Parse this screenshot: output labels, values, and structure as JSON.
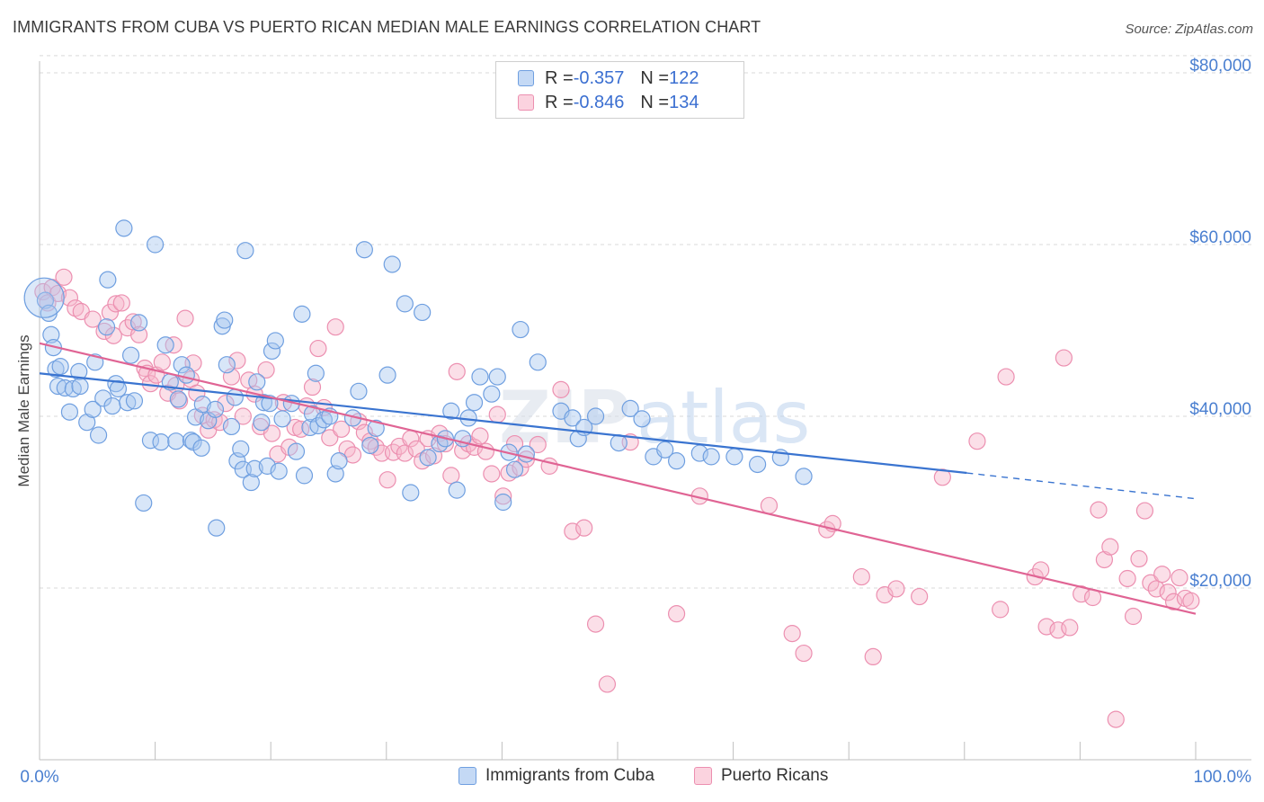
{
  "title": "IMMIGRANTS FROM CUBA VS PUERTO RICAN MEDIAN MALE EARNINGS CORRELATION CHART",
  "source": "Source: ZipAtlas.com",
  "watermark": {
    "part1": "ZIP",
    "part2": "atlas"
  },
  "legend": {
    "cuba": {
      "r_label": "R = ",
      "r_value": "-0.357",
      "n_label": "N = ",
      "n_value": "122"
    },
    "pr": {
      "r_label": "R = ",
      "r_value": "-0.846",
      "n_label": "N = ",
      "n_value": "134"
    }
  },
  "colors": {
    "cuba_fill": "#a8c8f0",
    "cuba_stroke": "#6f9fe0",
    "cuba_line": "#3a74d0",
    "pr_fill": "#f7b8cc",
    "pr_stroke": "#ec8fb0",
    "pr_line": "#e06494",
    "grid": "#d9d9d9",
    "tick_text": "#4a7fd0"
  },
  "chart_data": {
    "type": "scatter",
    "title": "IMMIGRANTS FROM CUBA VS PUERTO RICAN MEDIAN MALE EARNINGS CORRELATION CHART",
    "xlabel": "",
    "ylabel": "Median Male Earnings",
    "xlim": [
      0,
      100
    ],
    "ylim": [
      0,
      82000
    ],
    "x_tick_labels": [
      "0.0%",
      "100.0%"
    ],
    "y_ticks": [
      {
        "value": 20000,
        "label": "$20,000"
      },
      {
        "value": 40000,
        "label": "$40,000"
      },
      {
        "value": 60000,
        "label": "$60,000"
      },
      {
        "value": 80000,
        "label": "$80,000"
      }
    ],
    "grid": true,
    "legend_position": "top-center",
    "series": [
      {
        "name": "Immigrants from Cuba",
        "trend": {
          "x": [
            0,
            80.2
          ],
          "y": [
            45000,
            33400
          ],
          "dashed_to": [
            100,
            30400
          ]
        },
        "points": [
          [
            0.5,
            53500
          ],
          [
            0.8,
            52000
          ],
          [
            1.0,
            49500
          ],
          [
            1.2,
            48000
          ],
          [
            1.4,
            45500
          ],
          [
            1.6,
            43500
          ],
          [
            1.8,
            45800
          ],
          [
            2.2,
            43300
          ],
          [
            2.6,
            40500
          ],
          [
            2.9,
            43200
          ],
          [
            3.4,
            45200
          ],
          [
            3.5,
            43500
          ],
          [
            4.1,
            39300
          ],
          [
            4.6,
            40800
          ],
          [
            4.8,
            46300
          ],
          [
            5.1,
            37800
          ],
          [
            5.5,
            42100
          ],
          [
            5.8,
            50400
          ],
          [
            5.9,
            55900
          ],
          [
            6.3,
            41200
          ],
          [
            6.6,
            43800
          ],
          [
            6.8,
            43200
          ],
          [
            7.3,
            61900
          ],
          [
            7.6,
            41600
          ],
          [
            7.9,
            47100
          ],
          [
            8.2,
            41800
          ],
          [
            8.6,
            50900
          ],
          [
            9.0,
            29900
          ],
          [
            9.6,
            37200
          ],
          [
            10.0,
            60000
          ],
          [
            10.5,
            37000
          ],
          [
            10.9,
            48300
          ],
          [
            11.3,
            44000
          ],
          [
            11.8,
            37100
          ],
          [
            12.0,
            42000
          ],
          [
            12.3,
            46000
          ],
          [
            12.7,
            44800
          ],
          [
            13.1,
            37200
          ],
          [
            13.3,
            37000
          ],
          [
            13.5,
            39900
          ],
          [
            14.0,
            36300
          ],
          [
            14.1,
            41400
          ],
          [
            14.6,
            39500
          ],
          [
            15.2,
            40800
          ],
          [
            15.3,
            27000
          ],
          [
            15.8,
            50500
          ],
          [
            16.0,
            51200
          ],
          [
            16.2,
            46000
          ],
          [
            16.6,
            38800
          ],
          [
            16.9,
            42200
          ],
          [
            17.1,
            34800
          ],
          [
            17.4,
            36200
          ],
          [
            17.6,
            33800
          ],
          [
            17.8,
            59300
          ],
          [
            18.3,
            32300
          ],
          [
            18.6,
            33900
          ],
          [
            18.8,
            44000
          ],
          [
            19.2,
            39300
          ],
          [
            19.4,
            41600
          ],
          [
            19.7,
            34200
          ],
          [
            19.9,
            41500
          ],
          [
            20.1,
            47600
          ],
          [
            20.4,
            48800
          ],
          [
            20.7,
            33600
          ],
          [
            21.0,
            39700
          ],
          [
            21.8,
            41500
          ],
          [
            22.2,
            35900
          ],
          [
            22.7,
            51900
          ],
          [
            22.9,
            33100
          ],
          [
            23.4,
            38700
          ],
          [
            23.6,
            40300
          ],
          [
            23.9,
            45000
          ],
          [
            24.1,
            38900
          ],
          [
            24.6,
            39600
          ],
          [
            25.1,
            40000
          ],
          [
            25.6,
            33300
          ],
          [
            25.9,
            34800
          ],
          [
            27.1,
            39800
          ],
          [
            27.6,
            42900
          ],
          [
            28.1,
            59400
          ],
          [
            28.6,
            36600
          ],
          [
            29.1,
            38600
          ],
          [
            30.1,
            44800
          ],
          [
            30.5,
            57700
          ],
          [
            31.6,
            53100
          ],
          [
            32.1,
            31100
          ],
          [
            33.1,
            52100
          ],
          [
            33.6,
            35200
          ],
          [
            34.6,
            36800
          ],
          [
            35.1,
            37400
          ],
          [
            35.6,
            40600
          ],
          [
            36.1,
            31400
          ],
          [
            36.6,
            37400
          ],
          [
            37.1,
            39800
          ],
          [
            37.6,
            41600
          ],
          [
            38.1,
            44600
          ],
          [
            39.1,
            42600
          ],
          [
            39.6,
            44600
          ],
          [
            40.1,
            30000
          ],
          [
            40.6,
            35800
          ],
          [
            41.1,
            33800
          ],
          [
            41.6,
            50100
          ],
          [
            42.1,
            35600
          ],
          [
            43.1,
            46300
          ],
          [
            45.1,
            40600
          ],
          [
            46.1,
            39800
          ],
          [
            46.6,
            37400
          ],
          [
            47.1,
            38700
          ],
          [
            48.1,
            40000
          ],
          [
            50.1,
            36900
          ],
          [
            51.1,
            40900
          ],
          [
            52.1,
            39700
          ],
          [
            53.1,
            35300
          ],
          [
            54.1,
            36100
          ],
          [
            55.1,
            34800
          ],
          [
            57.1,
            35700
          ],
          [
            58.1,
            35300
          ],
          [
            60.1,
            35300
          ],
          [
            62.1,
            34400
          ],
          [
            64.1,
            35200
          ],
          [
            66.1,
            33000
          ]
        ]
      },
      {
        "name": "Puerto Ricans",
        "trend": {
          "x": [
            0,
            100
          ],
          "y": [
            48500,
            17000
          ]
        },
        "points": [
          [
            0.3,
            54500
          ],
          [
            0.7,
            53200
          ],
          [
            1.1,
            55000
          ],
          [
            1.6,
            54300
          ],
          [
            2.1,
            56200
          ],
          [
            2.6,
            53800
          ],
          [
            3.1,
            52600
          ],
          [
            3.6,
            52200
          ],
          [
            4.6,
            51300
          ],
          [
            5.6,
            49900
          ],
          [
            6.1,
            52100
          ],
          [
            6.4,
            49400
          ],
          [
            6.6,
            53100
          ],
          [
            7.1,
            53200
          ],
          [
            7.6,
            50300
          ],
          [
            8.1,
            51000
          ],
          [
            8.6,
            49500
          ],
          [
            9.1,
            45600
          ],
          [
            9.3,
            45000
          ],
          [
            9.6,
            43800
          ],
          [
            10.1,
            44800
          ],
          [
            10.6,
            46300
          ],
          [
            11.1,
            42700
          ],
          [
            11.6,
            48300
          ],
          [
            11.8,
            43600
          ],
          [
            12.1,
            41800
          ],
          [
            12.6,
            51400
          ],
          [
            13.1,
            44300
          ],
          [
            13.3,
            46200
          ],
          [
            13.6,
            42700
          ],
          [
            14.1,
            40100
          ],
          [
            14.6,
            38400
          ],
          [
            15.1,
            39600
          ],
          [
            15.6,
            39300
          ],
          [
            16.1,
            41500
          ],
          [
            16.6,
            44600
          ],
          [
            17.1,
            46500
          ],
          [
            17.6,
            40000
          ],
          [
            18.1,
            44200
          ],
          [
            18.6,
            42600
          ],
          [
            19.1,
            38800
          ],
          [
            19.6,
            45400
          ],
          [
            20.1,
            38000
          ],
          [
            20.6,
            35600
          ],
          [
            21.1,
            41600
          ],
          [
            21.6,
            36400
          ],
          [
            22.1,
            38700
          ],
          [
            22.6,
            38500
          ],
          [
            23.1,
            41200
          ],
          [
            23.6,
            43400
          ],
          [
            24.1,
            47900
          ],
          [
            24.6,
            41000
          ],
          [
            25.1,
            37500
          ],
          [
            25.6,
            50400
          ],
          [
            26.1,
            38500
          ],
          [
            26.6,
            36200
          ],
          [
            27.1,
            35500
          ],
          [
            27.6,
            39400
          ],
          [
            28.1,
            38100
          ],
          [
            28.6,
            37100
          ],
          [
            29.1,
            36400
          ],
          [
            29.6,
            35700
          ],
          [
            30.1,
            32600
          ],
          [
            30.6,
            35800
          ],
          [
            31.1,
            36500
          ],
          [
            31.6,
            35700
          ],
          [
            32.1,
            37400
          ],
          [
            32.6,
            36200
          ],
          [
            33.1,
            34800
          ],
          [
            33.6,
            37400
          ],
          [
            34.1,
            35400
          ],
          [
            34.6,
            38000
          ],
          [
            35.1,
            36800
          ],
          [
            35.6,
            33100
          ],
          [
            36.1,
            45200
          ],
          [
            36.6,
            36000
          ],
          [
            37.1,
            36800
          ],
          [
            37.6,
            36400
          ],
          [
            38.1,
            37700
          ],
          [
            38.6,
            35900
          ],
          [
            39.1,
            33300
          ],
          [
            39.6,
            40200
          ],
          [
            40.1,
            30700
          ],
          [
            40.6,
            33400
          ],
          [
            41.1,
            36800
          ],
          [
            41.6,
            34000
          ],
          [
            42.1,
            35000
          ],
          [
            43.1,
            36700
          ],
          [
            44.1,
            34200
          ],
          [
            45.1,
            43100
          ],
          [
            46.1,
            26600
          ],
          [
            47.1,
            27000
          ],
          [
            48.1,
            15800
          ],
          [
            49.1,
            8800
          ],
          [
            51.1,
            37000
          ],
          [
            55.1,
            17000
          ],
          [
            57.1,
            30700
          ],
          [
            63.1,
            29600
          ],
          [
            65.1,
            14700
          ],
          [
            66.1,
            12400
          ],
          [
            68.1,
            26800
          ],
          [
            68.6,
            27500
          ],
          [
            71.1,
            21300
          ],
          [
            72.1,
            12000
          ],
          [
            73.1,
            19200
          ],
          [
            74.1,
            19900
          ],
          [
            76.1,
            19000
          ],
          [
            78.1,
            32900
          ],
          [
            81.1,
            37100
          ],
          [
            83.1,
            17500
          ],
          [
            83.6,
            44600
          ],
          [
            86.1,
            21300
          ],
          [
            86.6,
            22100
          ],
          [
            87.1,
            15500
          ],
          [
            88.1,
            15100
          ],
          [
            88.6,
            46800
          ],
          [
            89.1,
            15400
          ],
          [
            90.1,
            19300
          ],
          [
            91.1,
            18900
          ],
          [
            91.6,
            29100
          ],
          [
            92.1,
            23300
          ],
          [
            92.6,
            24800
          ],
          [
            93.1,
            4700
          ],
          [
            94.1,
            21100
          ],
          [
            94.6,
            16700
          ],
          [
            95.1,
            23400
          ],
          [
            95.6,
            29000
          ],
          [
            96.1,
            20600
          ],
          [
            96.6,
            19900
          ],
          [
            97.1,
            21600
          ],
          [
            97.6,
            19500
          ],
          [
            98.1,
            18400
          ],
          [
            98.6,
            21200
          ],
          [
            99.1,
            18800
          ],
          [
            99.6,
            18500
          ]
        ]
      }
    ]
  },
  "bottom_legend": {
    "cuba_label": "Immigrants from Cuba",
    "pr_label": "Puerto Ricans"
  }
}
